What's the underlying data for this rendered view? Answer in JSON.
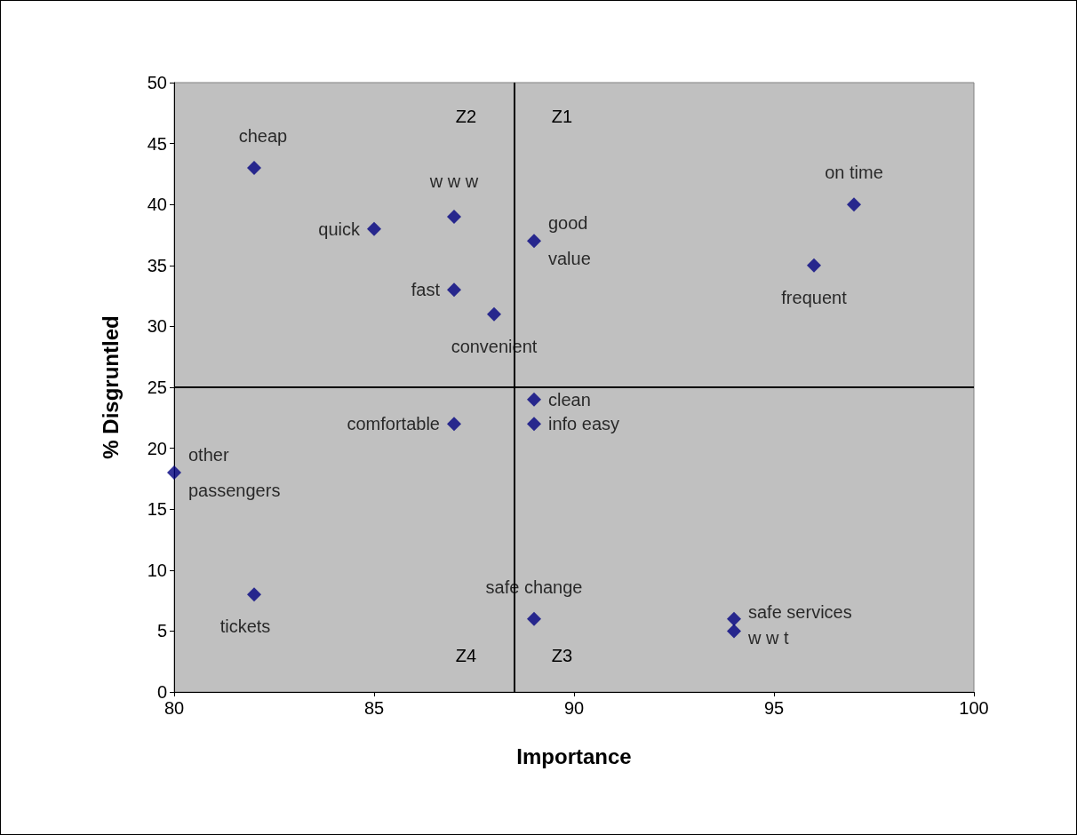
{
  "chart_data": {
    "type": "scatter",
    "xlabel": "Importance",
    "ylabel": "% Disgruntled",
    "x": [
      82,
      85,
      87,
      89,
      87,
      88,
      97,
      96,
      89,
      89,
      87,
      80,
      82,
      89,
      94,
      94
    ],
    "series": [
      {
        "color": "#000080",
        "values": [
          43,
          38,
          39,
          37,
          33,
          31,
          40,
          35,
          24,
          22,
          22,
          18,
          8,
          6,
          6,
          5
        ],
        "value_labels": [
          "cheap",
          "quick",
          "w w w",
          "good value",
          "fast",
          "convenient",
          "on time",
          "frequent",
          "clean",
          "info easy",
          "comfortable",
          "other passengers",
          "tickets",
          "safe change",
          "safe services",
          "w w t"
        ]
      }
    ],
    "marker": "diamond",
    "grid": false,
    "xlim": [
      80,
      100
    ],
    "xticks": [
      80,
      85,
      90,
      95,
      100
    ],
    "ylim": [
      0,
      50
    ],
    "yticks": [
      0,
      5,
      10,
      15,
      20,
      25,
      30,
      35,
      40,
      45,
      50
    ],
    "ref_lines": [
      {
        "axis": "x",
        "value": 88.5,
        "color": "#000000"
      },
      {
        "axis": "y",
        "value": 25,
        "color": "#000000"
      }
    ],
    "annotations": [
      "Z2",
      "Z1",
      "Z4",
      "Z3"
    ]
  }
}
